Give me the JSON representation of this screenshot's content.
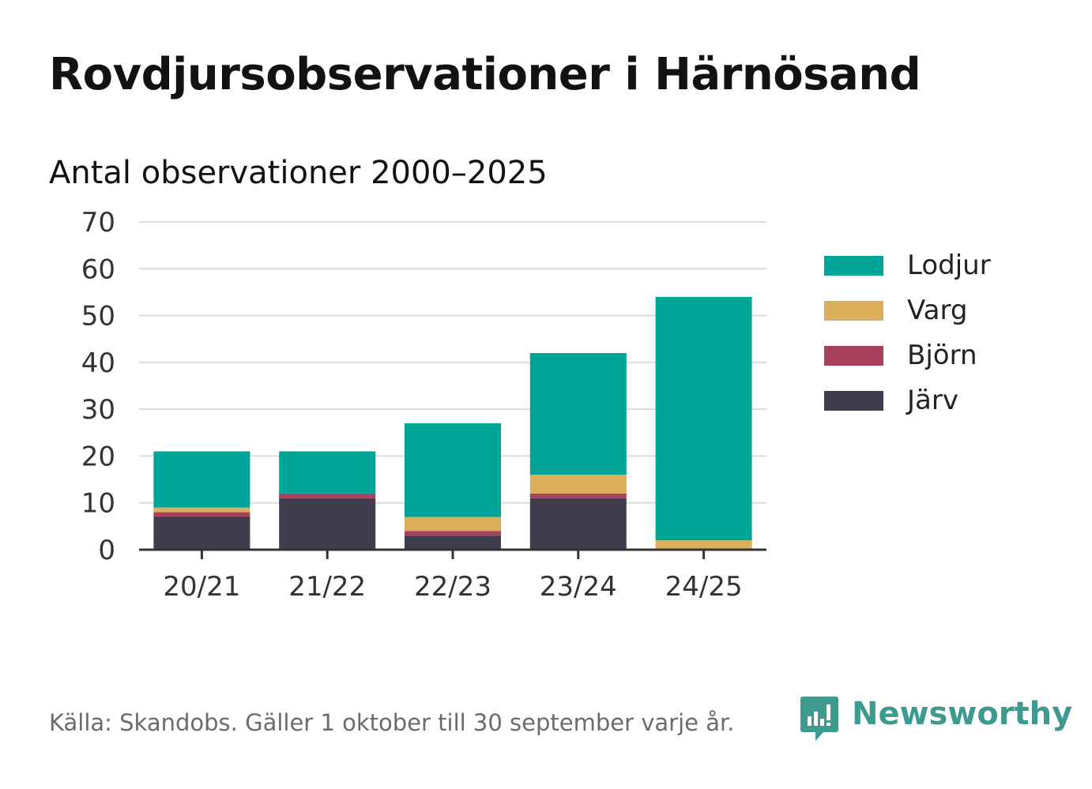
{
  "header": {
    "title": "Rovdjursobservationer i Härnösand",
    "subtitle": "Antal observationer 2000–2025"
  },
  "chart_data": {
    "type": "bar",
    "stacked": true,
    "categories": [
      "20/21",
      "21/22",
      "22/23",
      "23/24",
      "24/25"
    ],
    "series": [
      {
        "name": "Järv",
        "color": "#403e4e",
        "values": [
          7,
          11,
          3,
          11,
          0
        ]
      },
      {
        "name": "Björn",
        "color": "#a8405e",
        "values": [
          1,
          1,
          1,
          1,
          0
        ]
      },
      {
        "name": "Varg",
        "color": "#dcaf5a",
        "values": [
          1,
          0,
          3,
          4,
          2
        ]
      },
      {
        "name": "Lodjur",
        "color": "#00a59a",
        "values": [
          12,
          9,
          20,
          26,
          52
        ]
      }
    ],
    "legend_order": [
      "Lodjur",
      "Varg",
      "Björn",
      "Järv"
    ],
    "ylim": [
      0,
      70
    ],
    "yticks": [
      0,
      10,
      20,
      30,
      40,
      50,
      60,
      70
    ],
    "grid": true,
    "legend_position": "right"
  },
  "footer": {
    "source_note": "Källa: Skandobs. Gäller 1 oktober till 30 september varje år.",
    "brand_name": "Newsworthy",
    "brand_icon": "newsworthy-chat-bar-icon",
    "brand_color": "#3d9a8f"
  }
}
